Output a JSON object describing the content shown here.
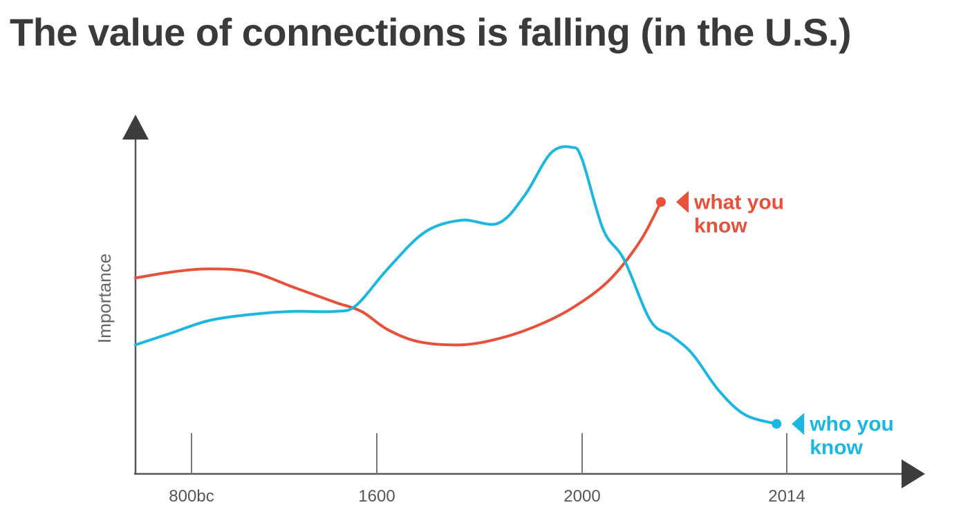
{
  "title": "The value of connections is falling (in the U.S.)",
  "chart_data": {
    "type": "line",
    "title": "The value of connections is falling (in the U.S.)",
    "xlabel": "",
    "ylabel": "Importance",
    "x_ticks": [
      "800bc",
      "1600",
      "2000",
      "2014"
    ],
    "y_range": [
      0,
      100
    ],
    "grid": false,
    "legend": "none (series labelled at right end)",
    "series": [
      {
        "name": "what you know",
        "color": "#e8503a",
        "points": [
          [
            0,
            54
          ],
          [
            14,
            56
          ],
          [
            28,
            57
          ],
          [
            44,
            56
          ],
          [
            60,
            51
          ],
          [
            76,
            46
          ],
          [
            86,
            43
          ],
          [
            96,
            37
          ],
          [
            108,
            33
          ],
          [
            124,
            32
          ],
          [
            138,
            34
          ],
          [
            152,
            38
          ],
          [
            166,
            44
          ],
          [
            180,
            53
          ],
          [
            192,
            66
          ],
          [
            200,
            79
          ]
        ]
      },
      {
        "name": "who you know",
        "color": "#1bb7e0",
        "points": [
          [
            0,
            32
          ],
          [
            14,
            36
          ],
          [
            28,
            40
          ],
          [
            44,
            42
          ],
          [
            60,
            43
          ],
          [
            76,
            43
          ],
          [
            84,
            45
          ],
          [
            96,
            57
          ],
          [
            110,
            69
          ],
          [
            124,
            73
          ],
          [
            138,
            72
          ],
          [
            148,
            81
          ],
          [
            158,
            95
          ],
          [
            166,
            97
          ],
          [
            170,
            93
          ],
          [
            178,
            70
          ],
          [
            186,
            60
          ],
          [
            196,
            40
          ],
          [
            204,
            35
          ],
          [
            212,
            29
          ],
          [
            222,
            17
          ],
          [
            232,
            9
          ],
          [
            244,
            6
          ]
        ]
      }
    ]
  }
}
